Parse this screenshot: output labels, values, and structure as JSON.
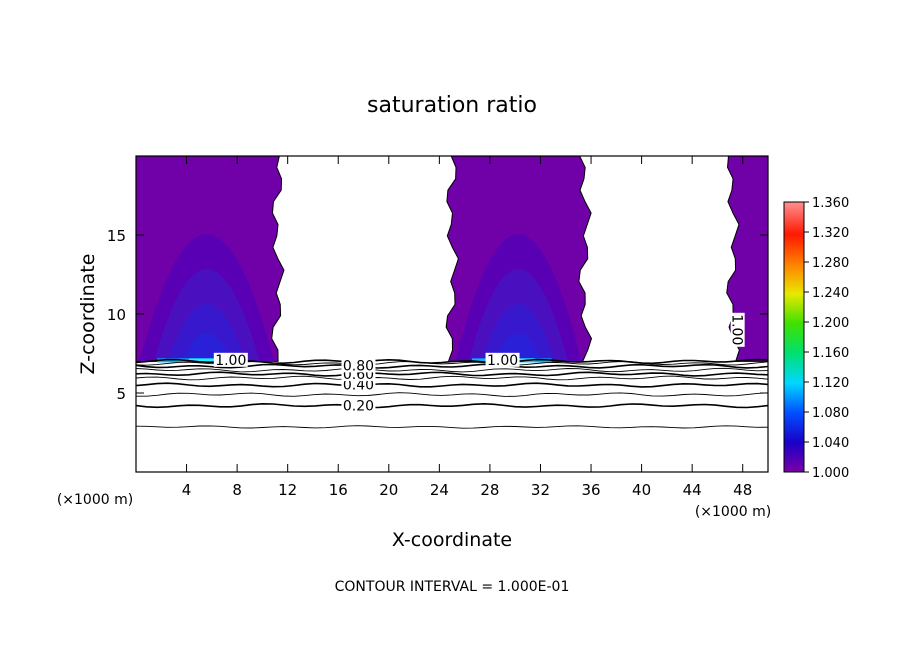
{
  "chart_data": {
    "type": "contour",
    "title": "saturation ratio",
    "xlabel": "X-coordinate",
    "ylabel": "Z-coordinate",
    "x_unit": "(×1000 m)",
    "y_unit": "(×1000 m)",
    "xlim": [
      0,
      50
    ],
    "ylim": [
      0,
      20
    ],
    "x_ticks": [
      4,
      8,
      12,
      16,
      20,
      24,
      28,
      32,
      36,
      40,
      44,
      48
    ],
    "y_ticks": [
      5,
      10,
      15
    ],
    "footer": "CONTOUR INTERVAL = 1.000E-01",
    "colorbar": {
      "min": 1.0,
      "max": 1.36,
      "labels": [
        "1.360",
        "1.320",
        "1.280",
        "1.240",
        "1.200",
        "1.160",
        "1.120",
        "1.080",
        "1.040",
        "1.000"
      ]
    },
    "saturated_regions": [
      {
        "x_start": 0.0,
        "x_end": 11.2,
        "z_bottom": 7.0,
        "z_top": 20.0
      },
      {
        "x_start": 25.0,
        "x_end": 35.5,
        "z_bottom": 7.0,
        "z_top": 20.0
      },
      {
        "x_start": 47.2,
        "x_end": 50.0,
        "z_bottom": 7.0,
        "z_top": 20.0
      }
    ],
    "contour_lines": [
      {
        "level": 0.2,
        "z": 4.2
      },
      {
        "level": 0.3,
        "z": 4.9
      },
      {
        "level": 0.4,
        "z": 5.5
      },
      {
        "level": 0.5,
        "z": 5.95
      },
      {
        "level": 0.6,
        "z": 6.2
      },
      {
        "level": 0.7,
        "z": 6.45
      },
      {
        "level": 0.8,
        "z": 6.7
      },
      {
        "level": 0.9,
        "z": 6.88
      },
      {
        "level": 1.0,
        "z": 7.0
      }
    ],
    "contour_labels": [
      {
        "text": "0.20",
        "x": 17.6,
        "z": 4.2
      },
      {
        "text": "0.40",
        "x": 17.6,
        "z": 5.55
      },
      {
        "text": "0.60",
        "x": 17.6,
        "z": 6.2
      },
      {
        "text": "0.80",
        "x": 17.6,
        "z": 6.75
      },
      {
        "text": "1.00",
        "x": 7.5,
        "z": 7.1
      },
      {
        "text": "1.00",
        "x": 29.0,
        "z": 7.1
      },
      {
        "text": "1.00",
        "x": 47.6,
        "z": 9.0,
        "rotated": true
      }
    ],
    "extra_line": {
      "level": "unlabeled",
      "z": 2.85
    }
  }
}
